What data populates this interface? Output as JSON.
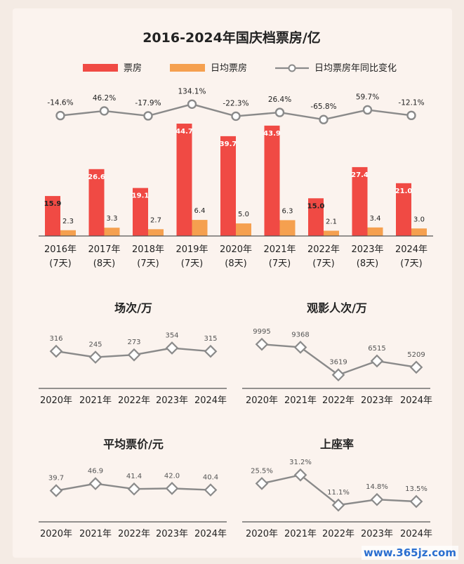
{
  "colors": {
    "box_office": "#f04a44",
    "daily_avg": "#f5a04f",
    "yoy_line": "#8a8a8a",
    "axis": "#555555"
  },
  "chart_data": [
    {
      "type": "bar",
      "title": "2016-2024年国庆档票房/亿",
      "categories": [
        "2016年",
        "2017年",
        "2018年",
        "2019年",
        "2020年",
        "2021年",
        "2022年",
        "2023年",
        "2024年"
      ],
      "category_sublabels": [
        "(7天)",
        "(8天)",
        "(7天)",
        "(7天)",
        "(8天)",
        "(7天)",
        "(7天)",
        "(8天)",
        "(7天)"
      ],
      "legend": [
        "票房",
        "日均票房",
        "日均票房年同比变化"
      ],
      "series": [
        {
          "name": "票房",
          "values": [
            15.9,
            26.6,
            19.1,
            44.7,
            39.7,
            43.9,
            15.0,
            27.4,
            21.0
          ],
          "labels": [
            "15.9",
            "26.6",
            "19.1",
            "44.7",
            "39.7",
            "43.9",
            "15.0",
            "27.4",
            "21.0"
          ]
        },
        {
          "name": "日均票房",
          "values": [
            2.3,
            3.3,
            2.7,
            6.4,
            5.0,
            6.3,
            2.1,
            3.4,
            3.0
          ],
          "labels": [
            "2.3",
            "3.3",
            "2.7",
            "6.4",
            "5.0",
            "6.3",
            "2.1",
            "3.4",
            "3.0"
          ]
        },
        {
          "name": "日均票房年同比变化",
          "values": [
            -14.6,
            46.2,
            -17.9,
            134.1,
            -22.3,
            26.4,
            -65.8,
            59.7,
            -12.1
          ],
          "labels": [
            "-14.6%",
            "46.2%",
            "-17.9%",
            "134.1%",
            "-22.3%",
            "26.4%",
            "-65.8%",
            "59.7%",
            "-12.1%"
          ]
        }
      ],
      "legend_position": "top"
    },
    {
      "type": "line",
      "title": "场次/万",
      "categories": [
        "2020年",
        "2021年",
        "2022年",
        "2023年",
        "2024年"
      ],
      "values": [
        316,
        245,
        273,
        354,
        315
      ],
      "labels": [
        "316",
        "245",
        "273",
        "354",
        "315"
      ],
      "ylim": [
        150,
        450
      ]
    },
    {
      "type": "line",
      "title": "观影人次/万",
      "categories": [
        "2020年",
        "2021年",
        "2022年",
        "2023年",
        "2024年"
      ],
      "values": [
        9995,
        9368,
        3619,
        6515,
        5209
      ],
      "labels": [
        "9995",
        "9368",
        "3619",
        "6515",
        "5209"
      ],
      "ylim": [
        2700,
        10900
      ]
    },
    {
      "type": "line",
      "title": "平均票价/元",
      "categories": [
        "2020年",
        "2021年",
        "2022年",
        "2023年",
        "2024年"
      ],
      "values": [
        39.7,
        46.9,
        41.4,
        42.0,
        40.4
      ],
      "labels": [
        "39.7",
        "46.9",
        "41.4",
        "42.0",
        "40.4"
      ],
      "ylim": [
        30,
        56
      ]
    },
    {
      "type": "line",
      "title": "上座率",
      "categories": [
        "2020年",
        "2021年",
        "2022年",
        "2023年",
        "2024年"
      ],
      "values": [
        25.5,
        31.2,
        11.1,
        14.8,
        13.5
      ],
      "labels": [
        "25.5%",
        "31.2%",
        "11.1%",
        "14.8%",
        "13.5%"
      ],
      "ylim": [
        6,
        36
      ]
    }
  ],
  "watermark": "www.365jz.com"
}
